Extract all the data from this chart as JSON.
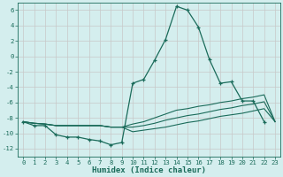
{
  "xlabel": "Humidex (Indice chaleur)",
  "x": [
    0,
    1,
    2,
    3,
    4,
    5,
    6,
    7,
    8,
    9,
    10,
    11,
    12,
    13,
    14,
    15,
    16,
    17,
    18,
    19,
    20,
    21,
    22,
    23
  ],
  "line1": [
    -8.5,
    -9.0,
    -9.0,
    -10.2,
    -10.5,
    -10.5,
    -10.8,
    -11.0,
    -11.5,
    -11.2,
    -3.5,
    -3.0,
    -0.5,
    2.2,
    6.5,
    6.0,
    3.8,
    -0.4,
    -3.5,
    -3.3,
    -5.8,
    -5.8,
    -8.5,
    null
  ],
  "line2": [
    -8.5,
    -8.7,
    -8.8,
    -9.0,
    -9.0,
    -9.0,
    -9.0,
    -9.0,
    -9.2,
    -9.2,
    -8.8,
    -8.5,
    -8.0,
    -7.5,
    -7.0,
    -6.8,
    -6.5,
    -6.3,
    -6.0,
    -5.8,
    -5.5,
    -5.3,
    -5.0,
    -8.5
  ],
  "line3": [
    -8.5,
    -8.7,
    -8.8,
    -9.0,
    -9.0,
    -9.0,
    -9.0,
    -9.0,
    -9.2,
    -9.2,
    -9.2,
    -9.0,
    -8.7,
    -8.3,
    -8.0,
    -7.7,
    -7.5,
    -7.2,
    -6.9,
    -6.7,
    -6.4,
    -6.2,
    -5.9,
    -8.5
  ],
  "line4": [
    -8.5,
    -8.7,
    -8.8,
    -9.0,
    -9.0,
    -9.0,
    -9.0,
    -9.0,
    -9.2,
    -9.2,
    -9.8,
    -9.6,
    -9.4,
    -9.2,
    -8.9,
    -8.6,
    -8.4,
    -8.1,
    -7.8,
    -7.6,
    -7.4,
    -7.1,
    -6.8,
    -8.5
  ],
  "bg_color": "#d4eeee",
  "grid_color": "#c8c8c8",
  "line_color": "#1a6b5a",
  "ylim": [
    -13,
    7
  ],
  "xlim": [
    -0.5,
    23.5
  ],
  "yticks": [
    -12,
    -10,
    -8,
    -6,
    -4,
    -2,
    0,
    2,
    4,
    6
  ],
  "xticks": [
    0,
    1,
    2,
    3,
    4,
    5,
    6,
    7,
    8,
    9,
    10,
    11,
    12,
    13,
    14,
    15,
    16,
    17,
    18,
    19,
    20,
    21,
    22,
    23
  ],
  "tick_fontsize": 5.2,
  "xlabel_fontsize": 6.5
}
